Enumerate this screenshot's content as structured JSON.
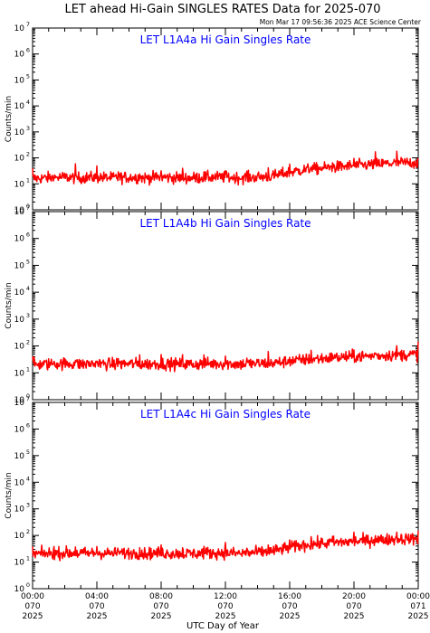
{
  "header": {
    "title": "LET ahead Hi-Gain SINGLES RATES Data for 2025-070",
    "timestamp": "Mon Mar 17 09:56:36 2025 ACE Science Center"
  },
  "chart_data": [
    {
      "type": "line",
      "title": "LET L1A4a Hi Gain Singles Rate",
      "ylabel": "Counts/min",
      "yscale": "log",
      "ylim": [
        1,
        10000000
      ],
      "xlim": [
        "2025-070 00:00",
        "2025-071 00:00"
      ],
      "series_color": "#ff0000",
      "title_color": "#0000ff",
      "series": [
        {
          "x_hours": [
            0,
            1,
            2,
            3,
            4,
            5,
            6,
            7,
            8,
            9,
            10,
            11,
            12,
            13,
            14,
            15,
            16,
            17,
            18,
            19,
            20,
            21,
            22,
            23,
            24
          ],
          "values": [
            16,
            17,
            18,
            17,
            18,
            17,
            18,
            17,
            18,
            17,
            17,
            18,
            18,
            17,
            18,
            20,
            28,
            35,
            40,
            45,
            50,
            55,
            60,
            65,
            65
          ]
        }
      ]
    },
    {
      "type": "line",
      "title": "LET L1A4b Hi Gain Singles Rate",
      "ylabel": "Counts/min",
      "yscale": "log",
      "ylim": [
        1,
        10000000
      ],
      "xlim": [
        "2025-070 00:00",
        "2025-071 00:00"
      ],
      "series_color": "#ff0000",
      "title_color": "#0000ff",
      "series": [
        {
          "x_hours": [
            0,
            1,
            2,
            3,
            4,
            5,
            6,
            7,
            8,
            9,
            10,
            11,
            12,
            13,
            14,
            15,
            16,
            17,
            18,
            19,
            20,
            21,
            22,
            23,
            24
          ],
          "values": [
            20,
            21,
            22,
            21,
            22,
            21,
            22,
            21,
            22,
            21,
            21,
            22,
            22,
            21,
            22,
            23,
            27,
            31,
            34,
            37,
            40,
            42,
            45,
            47,
            48
          ]
        }
      ]
    },
    {
      "type": "line",
      "title": "LET L1A4c Hi Gain Singles Rate",
      "ylabel": "Counts/min",
      "yscale": "log",
      "ylim": [
        1,
        10000000
      ],
      "xlim": [
        "2025-070 00:00",
        "2025-071 00:00"
      ],
      "series_color": "#ff0000",
      "title_color": "#0000ff",
      "series": [
        {
          "x_hours": [
            0,
            1,
            2,
            3,
            4,
            5,
            6,
            7,
            8,
            9,
            10,
            11,
            12,
            13,
            14,
            15,
            16,
            17,
            18,
            19,
            20,
            21,
            22,
            23,
            24
          ],
          "values": [
            20,
            21,
            22,
            21,
            22,
            21,
            22,
            21,
            22,
            21,
            21,
            22,
            22,
            21,
            23,
            26,
            35,
            45,
            50,
            55,
            60,
            65,
            70,
            75,
            75
          ]
        }
      ]
    }
  ],
  "y_ticks": [
    {
      "base": "10",
      "exp": "0"
    },
    {
      "base": "10",
      "exp": "1"
    },
    {
      "base": "10",
      "exp": "2"
    },
    {
      "base": "10",
      "exp": "3"
    },
    {
      "base": "10",
      "exp": "4"
    },
    {
      "base": "10",
      "exp": "5"
    },
    {
      "base": "10",
      "exp": "6"
    },
    {
      "base": "10",
      "exp": "7"
    }
  ],
  "x_ticks": [
    {
      "time": "00:00",
      "day": "070",
      "year": "2025"
    },
    {
      "time": "04:00",
      "day": "070",
      "year": "2025"
    },
    {
      "time": "08:00",
      "day": "070",
      "year": "2025"
    },
    {
      "time": "12:00",
      "day": "070",
      "year": "2025"
    },
    {
      "time": "16:00",
      "day": "070",
      "year": "2025"
    },
    {
      "time": "20:00",
      "day": "070",
      "year": "2025"
    },
    {
      "time": "00:00",
      "day": "071",
      "year": "2025"
    }
  ],
  "xlabel": "UTC Day of Year"
}
